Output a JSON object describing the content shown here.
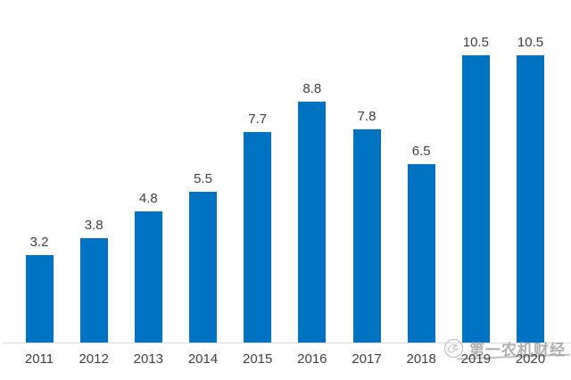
{
  "chart_data": {
    "type": "bar",
    "categories": [
      "2011",
      "2012",
      "2013",
      "2014",
      "2015",
      "2016",
      "2017",
      "2018",
      "2019",
      "2020"
    ],
    "values": [
      3.2,
      3.8,
      4.8,
      5.5,
      7.7,
      8.8,
      7.8,
      6.5,
      10.5,
      10.5
    ],
    "title": "",
    "xlabel": "",
    "ylabel": "",
    "ylim": [
      0,
      12.5
    ],
    "grid": false,
    "legend": false,
    "data_labels_shown": true,
    "bar_color": "#0072C2",
    "label_color": "#404040",
    "axis_line_color": "#D9D9D9"
  },
  "watermark": {
    "text": "第一农机财经",
    "logo_icon": "bird-circle-logo",
    "color": "#969696"
  }
}
